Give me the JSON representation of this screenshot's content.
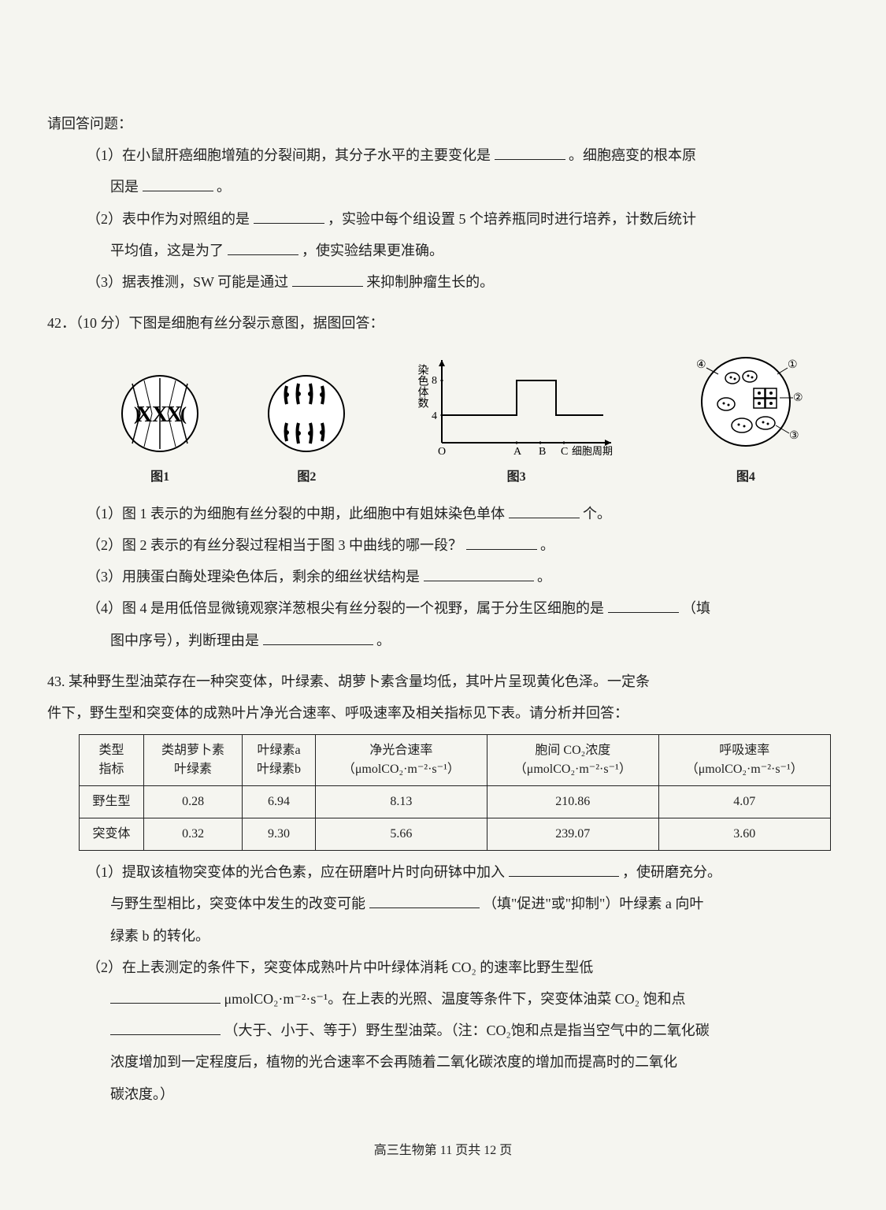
{
  "intro": "请回答问题：",
  "q1": {
    "a": "（1）在小鼠肝癌细胞增殖的分裂间期，其分子水平的主要变化是",
    "a_suffix": "。细胞癌变的根本原",
    "a2": "因是",
    "a2_suffix": "。",
    "b": "（2）表中作为对照组的是",
    "b_mid": "，实验中每个组设置 5 个培养瓶同时进行培养，计数后统计",
    "b2": "平均值，这是为了",
    "b2_suffix": "，使实验结果更准确。",
    "c": "（3）据表推测，SW 可能是通过",
    "c_suffix": "来抑制肿瘤生长的。"
  },
  "q42": {
    "header": "42．（10 分）下图是细胞有丝分裂示意图，据图回答：",
    "fig1_caption": "图1",
    "fig2_caption": "图2",
    "fig3_caption": "图3",
    "fig4_caption": "图4",
    "graph": {
      "ylabel": "染色体数",
      "yticks": [
        "4",
        "8"
      ],
      "xticks": [
        "O",
        "A",
        "B",
        "C"
      ],
      "xlabel": "细胞周期",
      "line_color": "#000000",
      "axis_color": "#000000"
    },
    "a": "（1）图 1 表示的为细胞有丝分裂的中期，此细胞中有姐妹染色单体",
    "a_suffix": "个。",
    "b": "（2）图 2 表示的有丝分裂过程相当于图 3 中曲线的哪一段？",
    "b_suffix": "。",
    "c": "（3）用胰蛋白酶处理染色体后，剩余的细丝状结构是",
    "c_suffix": "。",
    "d": "（4）图 4 是用低倍显微镜观察洋葱根尖有丝分裂的一个视野，属于分生区细胞的是",
    "d_suffix": "（填",
    "d2": "图中序号），判断理由是",
    "d2_suffix": "。"
  },
  "q43": {
    "header": "43. 某种野生型油菜存在一种突变体，叶绿素、胡萝卜素含量均低，其叶片呈现黄化色泽。一定条",
    "header2": "件下，野生型和突变体的成熟叶片净光合速率、呼吸速率及相关指标见下表。请分析并回答：",
    "table": {
      "headers": [
        "类型\n指标",
        "类胡萝卜素\n叶绿素",
        "叶绿素a\n叶绿素b",
        "净光合速率\n（μmolCO₂·m⁻²·s⁻¹）",
        "胞间 CO₂浓度\n（μmolCO₂·m⁻²·s⁻¹）",
        "呼吸速率\n（μmolCO₂·m⁻²·s⁻¹）"
      ],
      "rows": [
        [
          "野生型",
          "0.28",
          "6.94",
          "8.13",
          "210.86",
          "4.07"
        ],
        [
          "突变体",
          "0.32",
          "9.30",
          "5.66",
          "239.07",
          "3.60"
        ]
      ]
    },
    "a": "（1）提取该植物突变体的光合色素，应在研磨叶片时向研钵中加入",
    "a_suffix": "，使研磨充分。",
    "a2": "与野生型相比，突变体中发生的改变可能",
    "a2_mid": "（填\"促进\"或\"抑制\"）叶绿素 a 向叶",
    "a3": "绿素 b 的转化。",
    "b": "（2）在上表测定的条件下，突变体成熟叶片中叶绿体消耗 CO₂ 的速率比野生型低",
    "b2_suffix": "μmolCO₂·m⁻²·s⁻¹。在上表的光照、温度等条件下，突变体油菜 CO₂ 饱和点",
    "b3_suffix": "（大于、小于、等于）野生型油菜。（注：CO₂饱和点是指当空气中的二氧化碳",
    "b4": "浓度增加到一定程度后，植物的光合速率不会再随着二氧化碳浓度的增加而提高时的二氧化",
    "b5": "碳浓度。）"
  },
  "footer": "高三生物第 11 页共 12 页"
}
